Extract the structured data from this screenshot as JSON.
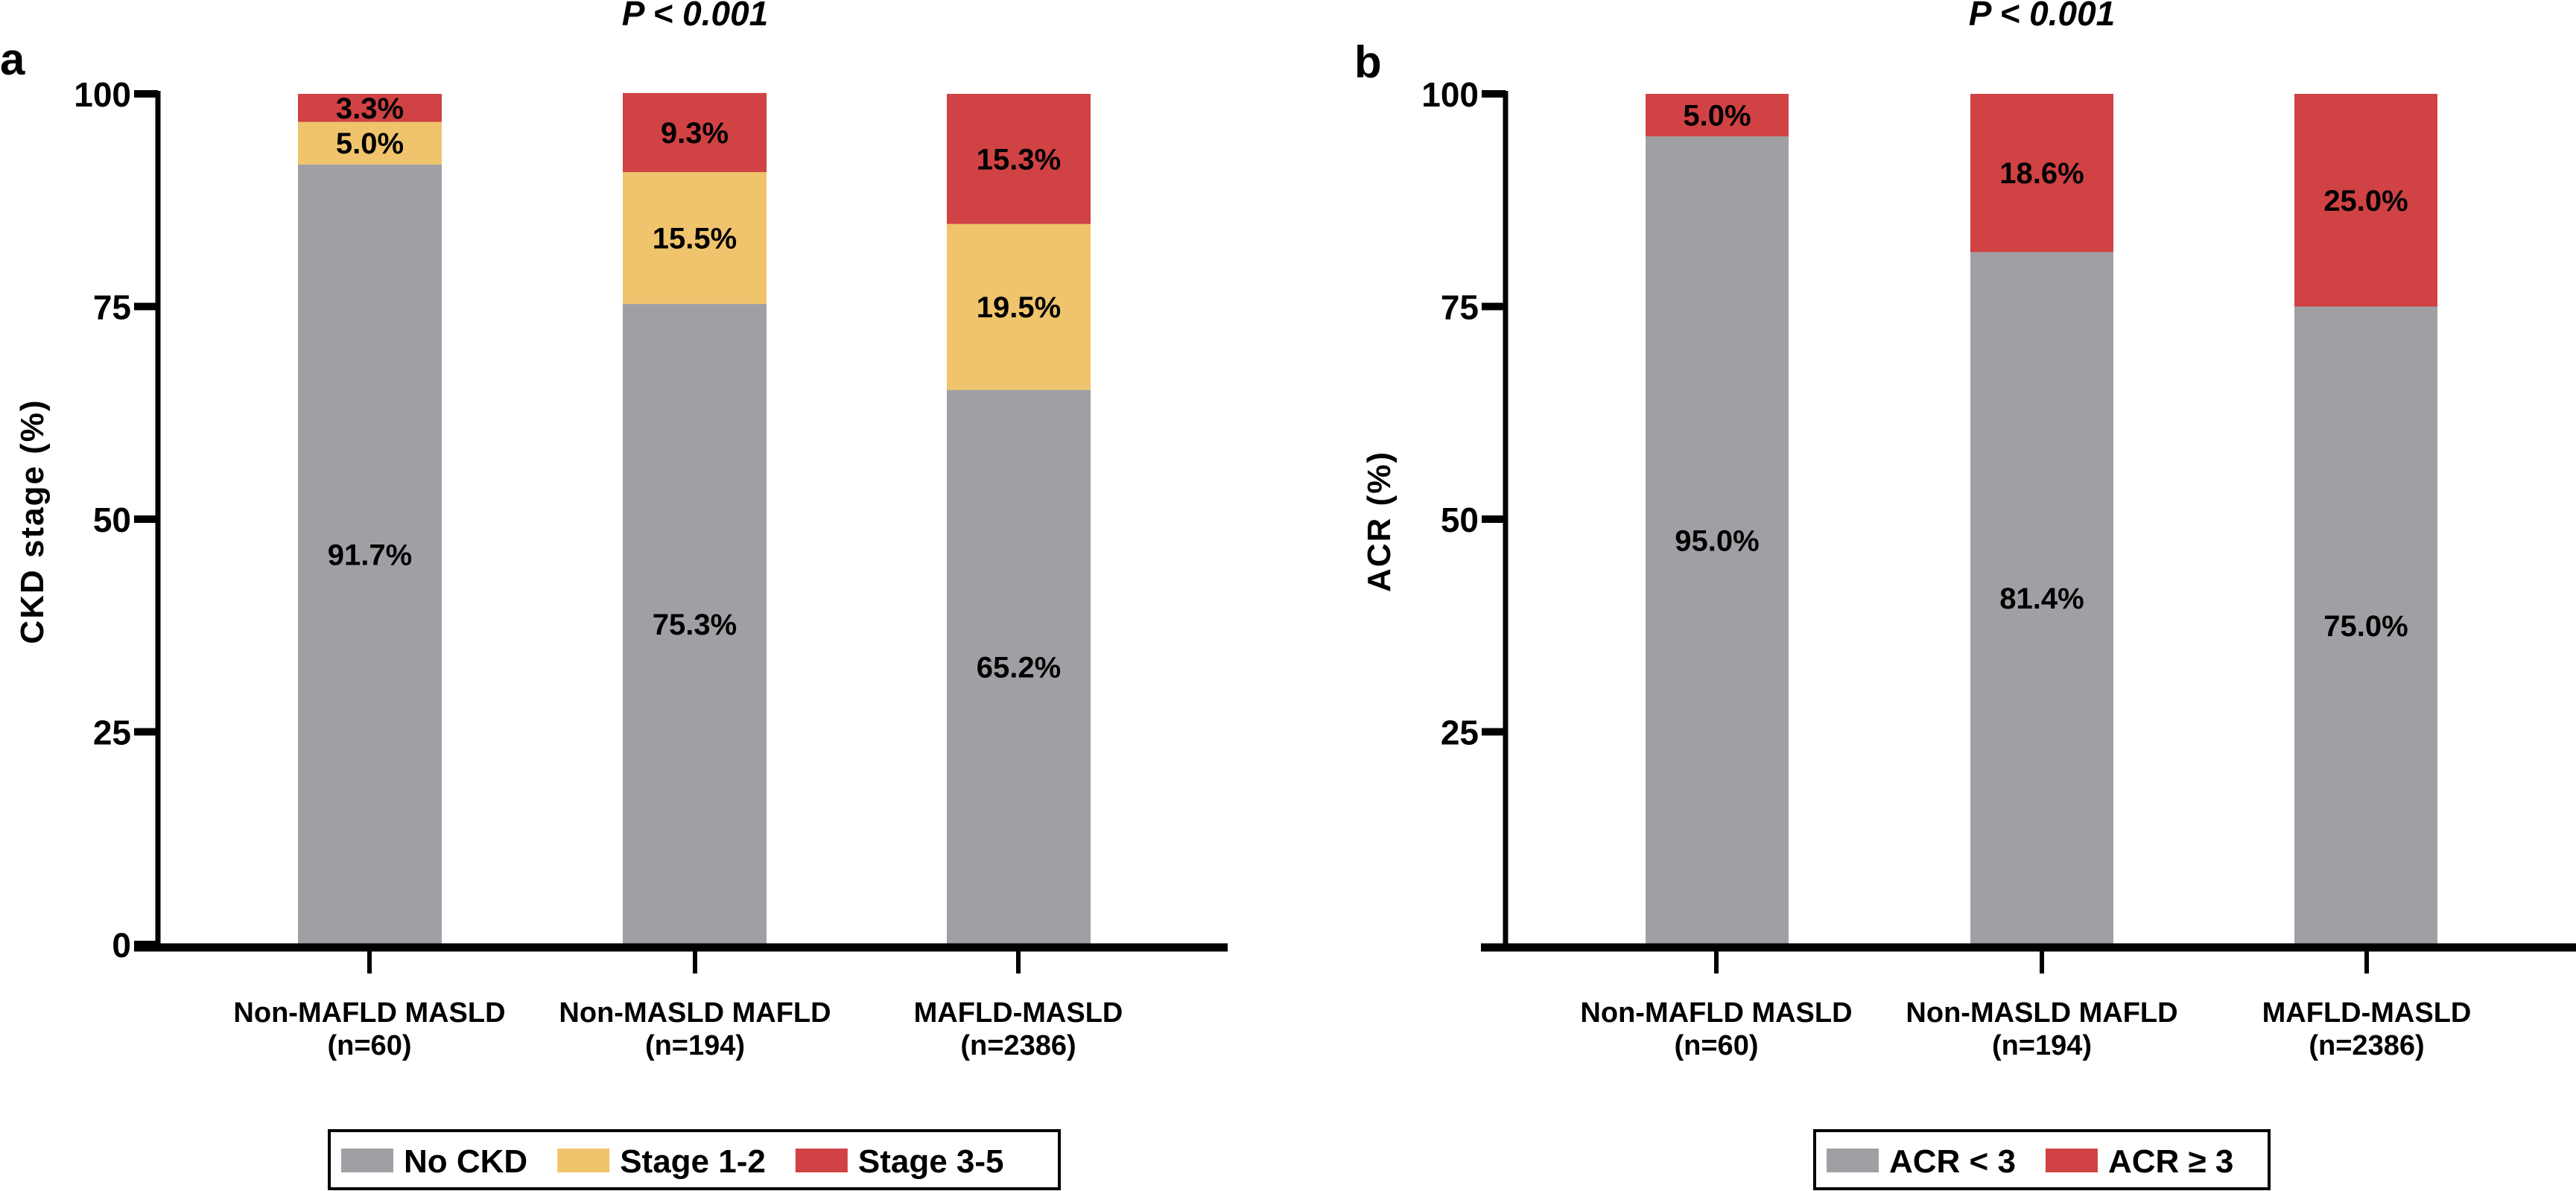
{
  "colors": {
    "gray": "#a09fa4",
    "yellow": "#f0c46c",
    "red": "#d04243"
  },
  "chart_data": [
    {
      "type": "bar",
      "stacked": true,
      "panel_label": "a",
      "title": "P < 0.001",
      "ylabel": "CKD stage (%)",
      "xlabel": "",
      "ylim": [
        0,
        100
      ],
      "yticks": [
        "0",
        "25",
        "50",
        "75",
        "100"
      ],
      "grid": false,
      "legend_position": "bottom",
      "categories": [
        [
          "Non-MAFLD MASLD",
          "(n=60)"
        ],
        [
          "Non-MASLD MAFLD",
          "(n=194)"
        ],
        [
          "MAFLD-MASLD",
          "(n=2386)"
        ]
      ],
      "series": [
        {
          "name": "No CKD",
          "color": "#a09fa4",
          "values": [
            91.7,
            75.3,
            65.2
          ],
          "labels": [
            "91.7%",
            "75.3%",
            "65.2%"
          ]
        },
        {
          "name": "Stage 1-2",
          "color": "#f0c46c",
          "values": [
            5.0,
            15.5,
            19.5
          ],
          "labels": [
            "5.0%",
            "15.5%",
            "19.5%"
          ]
        },
        {
          "name": "Stage 3-5",
          "color": "#d04243",
          "values": [
            3.3,
            9.3,
            15.3
          ],
          "labels": [
            "3.3%",
            "9.3%",
            "15.3%"
          ]
        }
      ]
    },
    {
      "type": "bar",
      "stacked": true,
      "panel_label": "b",
      "title": "P < 0.001",
      "ylabel": "ACR (%)",
      "xlabel": "",
      "ylim": [
        0,
        100
      ],
      "yticks": [
        "25",
        "50",
        "75",
        "100"
      ],
      "grid": false,
      "legend_position": "bottom",
      "categories": [
        [
          "Non-MAFLD MASLD",
          "(n=60)"
        ],
        [
          "Non-MASLD MAFLD",
          "(n=194)"
        ],
        [
          "MAFLD-MASLD",
          "(n=2386)"
        ]
      ],
      "series": [
        {
          "name": "ACR < 3",
          "color": "#a09fa4",
          "values": [
            95.0,
            81.4,
            75.0
          ],
          "labels": [
            "95.0%",
            "81.4%",
            "75.0%"
          ]
        },
        {
          "name": "ACR ≥ 3",
          "color": "#d04243",
          "values": [
            5.0,
            18.6,
            25.0
          ],
          "labels": [
            "5.0%",
            "18.6%",
            "25.0%"
          ]
        }
      ]
    }
  ]
}
